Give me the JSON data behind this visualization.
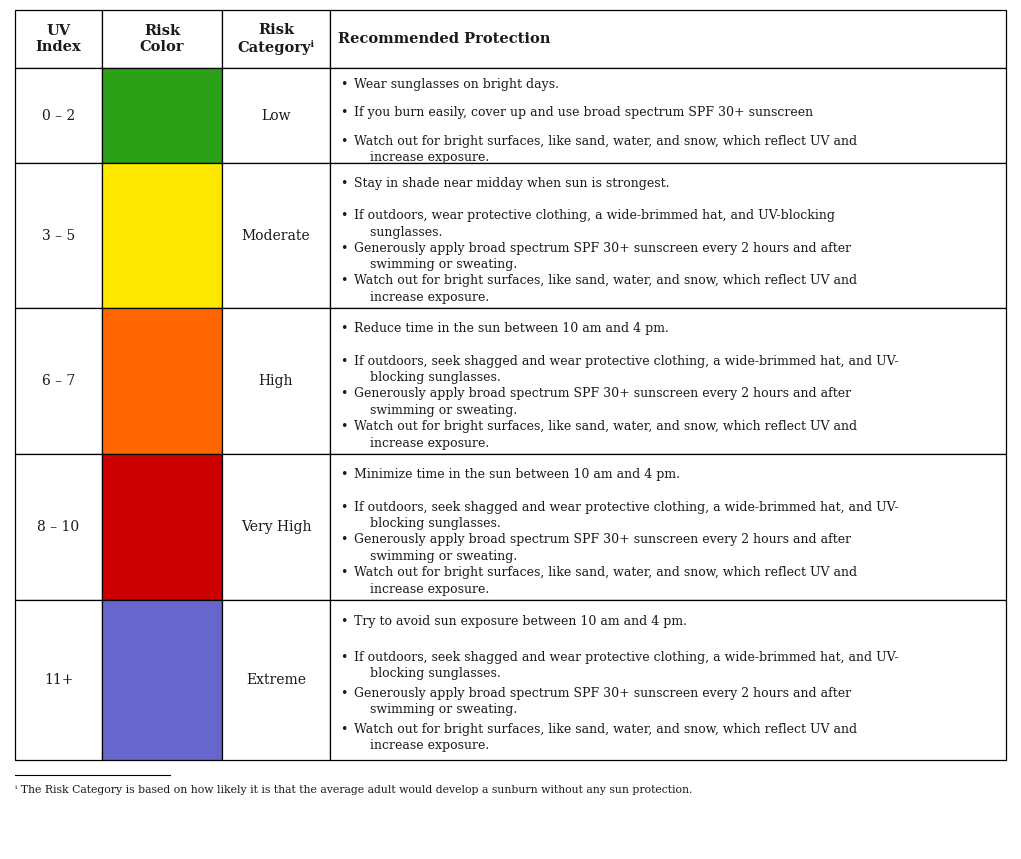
{
  "rows": [
    {
      "uv_index": "0 – 2",
      "color": "#2ca016",
      "category": "Low",
      "protection": [
        "Wear sunglasses on bright days.",
        "If you burn easily, cover up and use broad spectrum SPF 30+ sunscreen",
        "Watch out for bright surfaces, like sand, water, and snow, which reflect UV and\n    increase exposure."
      ]
    },
    {
      "uv_index": "3 – 5",
      "color": "#FFE800",
      "category": "Moderate",
      "protection": [
        "Stay in shade near midday when sun is strongest.",
        "If outdoors, wear protective clothing, a wide-brimmed hat, and UV-blocking\n    sunglasses.",
        "Generously apply broad spectrum SPF 30+ sunscreen every 2 hours and after\n    swimming or sweating.",
        "Watch out for bright surfaces, like sand, water, and snow, which reflect UV and\n    increase exposure."
      ]
    },
    {
      "uv_index": "6 – 7",
      "color": "#FF6600",
      "category": "High",
      "protection": [
        "Reduce time in the sun between 10 am and 4 pm.",
        "If outdoors, seek shagged and wear protective clothing, a wide-brimmed hat, and UV-\n    blocking sunglasses.",
        "Generously apply broad spectrum SPF 30+ sunscreen every 2 hours and after\n    swimming or sweating.",
        "Watch out for bright surfaces, like sand, water, and snow, which reflect UV and\n    increase exposure."
      ]
    },
    {
      "uv_index": "8 – 10",
      "color": "#CC0000",
      "category": "Very High",
      "protection": [
        "Minimize time in the sun between 10 am and 4 pm.",
        "If outdoors, seek shagged and wear protective clothing, a wide-brimmed hat, and UV-\n    blocking sunglasses.",
        "Generously apply broad spectrum SPF 30+ sunscreen every 2 hours and after\n    swimming or sweating.",
        "Watch out for bright surfaces, like sand, water, and snow, which reflect UV and\n    increase exposure."
      ]
    },
    {
      "uv_index": "11+",
      "color": "#6666CC",
      "category": "Extreme",
      "protection": [
        "Try to avoid sun exposure between 10 am and 4 pm.",
        "If outdoors, seek shagged and wear protective clothing, a wide-brimmed hat, and UV-\n    blocking sunglasses.",
        "Generously apply broad spectrum SPF 30+ sunscreen every 2 hours and after\n    swimming or sweating.",
        "Watch out for bright surfaces, like sand, water, and snow, which reflect UV and\n    increase exposure."
      ]
    }
  ],
  "footnote": "ⁱ The Risk Category is based on how likely it is that the average adult would develop a sunburn without any sun protection.",
  "text_color": "#1a1a1a",
  "border_color": "#000000",
  "bg_color": "#ffffff",
  "font_size": 9.0,
  "header_font_size": 10.5
}
